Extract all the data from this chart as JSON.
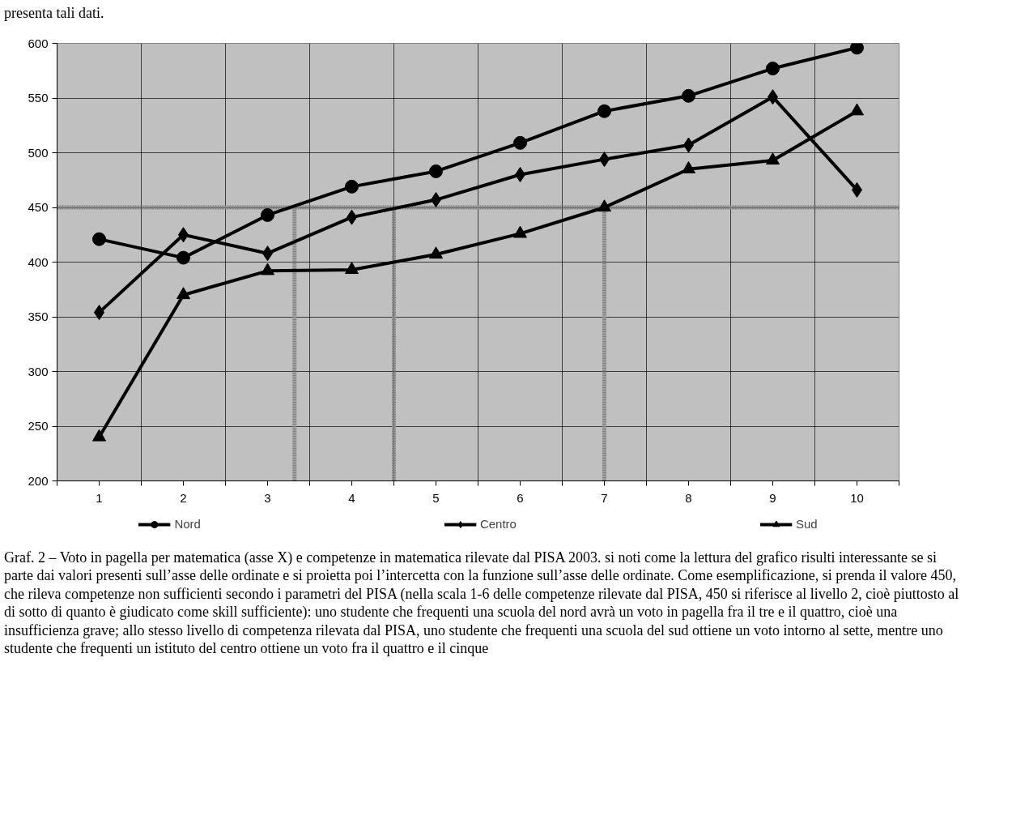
{
  "chart_data": {
    "type": "line",
    "x": [
      1,
      2,
      3,
      4,
      5,
      6,
      7,
      8,
      9,
      10
    ],
    "xlim": [
      0.5,
      10.5
    ],
    "xticks": [
      {
        "value": 0.5,
        "label": null
      },
      1,
      {
        "value": 1.5,
        "label": null
      },
      2,
      {
        "value": 2.5,
        "label": null
      },
      3,
      {
        "value": 3.5,
        "label": null
      },
      4,
      {
        "value": 4.5,
        "label": null
      },
      5,
      {
        "value": 5.5,
        "label": null
      },
      6,
      {
        "value": 6.5,
        "label": null
      },
      7,
      {
        "value": 7.5,
        "label": null
      },
      8,
      {
        "value": 8.5,
        "label": null
      },
      9,
      {
        "value": 9.5,
        "label": null
      },
      10,
      {
        "value": 10.5,
        "label": null
      }
    ],
    "ylim": [
      200,
      600
    ],
    "yticks": [
      200,
      250,
      300,
      350,
      400,
      450,
      500,
      550,
      600
    ],
    "grid": true,
    "legend": "bottom",
    "line_style": "solid",
    "series": [
      {
        "name": "Nord",
        "color": "#000000",
        "marker": "circle",
        "values": [
          421,
          404,
          443,
          469,
          483,
          509,
          538,
          552,
          577,
          596
        ]
      },
      {
        "name": "Centro",
        "color": "#000000",
        "marker": "diamond",
        "values": [
          354,
          425,
          408,
          441,
          457,
          480,
          494,
          507,
          551,
          466
        ]
      },
      {
        "name": "Sud",
        "color": "#000000",
        "marker": "triangle",
        "values": [
          240,
          370,
          392,
          393,
          407,
          426,
          450,
          485,
          493,
          538
        ]
      }
    ],
    "ref_lines": [
      {
        "axis": "y",
        "value": 450,
        "color": "#808080",
        "line_style": "dotted"
      },
      {
        "axis": "x",
        "value": 3.32,
        "color": "#808080",
        "line_style": "dotted"
      },
      {
        "axis": "x",
        "value": 4.5,
        "color": "#808080",
        "line_style": "dotted"
      },
      {
        "axis": "x",
        "value": 7.0,
        "color": "#808080",
        "line_style": "dotted"
      }
    ],
    "annotations": [
      "presenta tali dati.",
      "Graf. 2 – Voto in pagella per matematica (asse X) e competenze in matematica rilevate dal PISA 2003. si noti come la lettura del grafico risulti interessante se si parte dai valori presenti sull’asse delle ordinate e si proietta poi l’intercetta con la funzione sull’asse delle ordinate. Come esemplificazione, si prenda il valore 450, che rileva competenze non sufficienti secondo i parametri del PISA (nella scala 1-6 delle competenze rilevate dal PISA, 450 si riferisce al livello 2, cioè piuttosto al di sotto di quanto è giudicato come skill sufficiente): uno studente che frequenti una scuola del nord avrà un voto in pagella fra il tre e il quattro, cioè una insufficienza grave; allo stesso livello di competenza rilevata dal PISA, uno studente che frequenti una scuola del sud ottiene un voto intorno al sette, mentre uno studente che frequenti un istituto del centro ottiene un voto fra il quattro e il cinque"
    ]
  }
}
